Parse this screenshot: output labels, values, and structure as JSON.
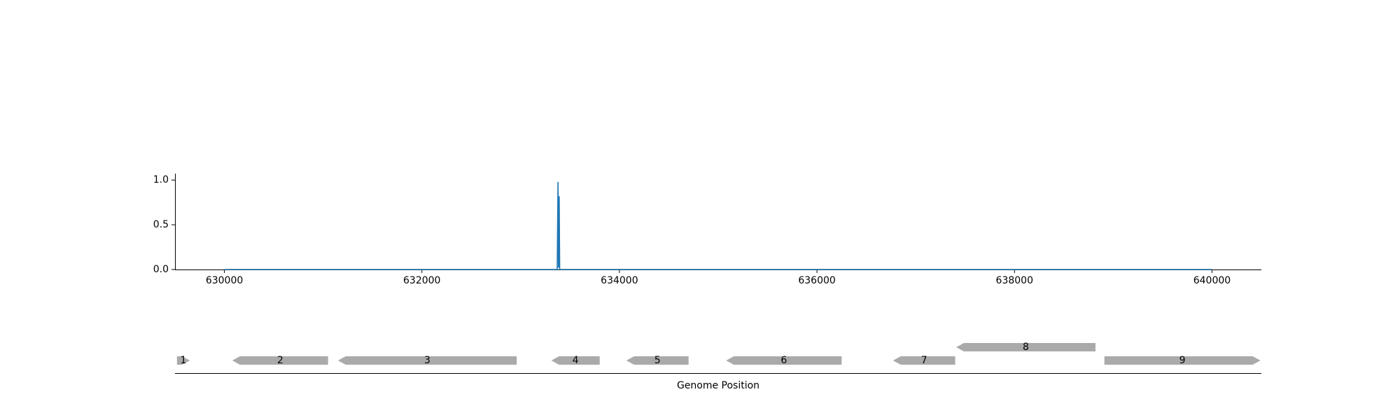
{
  "chart_data": [
    {
      "type": "line",
      "title": "",
      "xlabel": "",
      "ylabel": "",
      "xlim": [
        629500,
        640500
      ],
      "ylim": [
        0,
        1.08
      ],
      "xticks": [
        630000,
        632000,
        634000,
        636000,
        638000,
        640000
      ],
      "xtick_labels": [
        "630000",
        "632000",
        "634000",
        "636000",
        "638000",
        "640000"
      ],
      "yticks": [
        0.0,
        0.5,
        1.0
      ],
      "ytick_labels": [
        "0.0",
        "0.5",
        "1.0"
      ],
      "color": "#1f77b4",
      "grid": false,
      "series": [
        {
          "x": [
            630000,
            633370,
            633378,
            633383,
            633390,
            633395,
            633402,
            640000
          ],
          "y": [
            0.0,
            0.0,
            0.98,
            0.02,
            0.82,
            0.0,
            0.0,
            0.0
          ]
        }
      ]
    },
    {
      "type": "gene-track",
      "xlabel": "Genome Position",
      "color": "#aaaaaa",
      "genes": [
        {
          "label": "1",
          "start": 629520,
          "end": 629650,
          "strand": "+",
          "row": 0
        },
        {
          "label": "2",
          "start": 630080,
          "end": 631050,
          "strand": "-",
          "row": 0
        },
        {
          "label": "3",
          "start": 631150,
          "end": 632960,
          "strand": "-",
          "row": 0
        },
        {
          "label": "4",
          "start": 633310,
          "end": 633800,
          "strand": "-",
          "row": 0
        },
        {
          "label": "5",
          "start": 634070,
          "end": 634700,
          "strand": "-",
          "row": 0
        },
        {
          "label": "6",
          "start": 635080,
          "end": 636250,
          "strand": "-",
          "row": 0
        },
        {
          "label": "7",
          "start": 636770,
          "end": 637400,
          "strand": "-",
          "row": 0
        },
        {
          "label": "8",
          "start": 637410,
          "end": 638820,
          "strand": "-",
          "row": 1
        },
        {
          "label": "9",
          "start": 638910,
          "end": 640490,
          "strand": "+",
          "row": 0
        }
      ]
    }
  ]
}
